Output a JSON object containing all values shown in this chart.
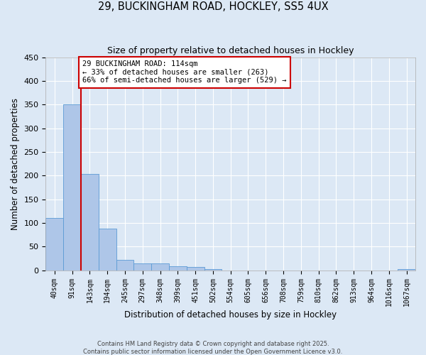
{
  "title": "29, BUCKINGHAM ROAD, HOCKLEY, SS5 4UX",
  "subtitle": "Size of property relative to detached houses in Hockley",
  "xlabel": "Distribution of detached houses by size in Hockley",
  "ylabel": "Number of detached properties",
  "bin_labels": [
    "40sqm",
    "91sqm",
    "143sqm",
    "194sqm",
    "245sqm",
    "297sqm",
    "348sqm",
    "399sqm",
    "451sqm",
    "502sqm",
    "554sqm",
    "605sqm",
    "656sqm",
    "708sqm",
    "759sqm",
    "810sqm",
    "862sqm",
    "913sqm",
    "964sqm",
    "1016sqm",
    "1067sqm"
  ],
  "bar_values": [
    110,
    350,
    204,
    88,
    22,
    15,
    15,
    8,
    7,
    2,
    0,
    0,
    0,
    0,
    0,
    0,
    0,
    0,
    0,
    0,
    2
  ],
  "bar_color": "#aec6e8",
  "bar_edge_color": "#5b9bd5",
  "ylim": [
    0,
    450
  ],
  "yticks": [
    0,
    50,
    100,
    150,
    200,
    250,
    300,
    350,
    400,
    450
  ],
  "property_line_color": "#cc0000",
  "annotation_title": "29 BUCKINGHAM ROAD: 114sqm",
  "annotation_line1": "← 33% of detached houses are smaller (263)",
  "annotation_line2": "66% of semi-detached houses are larger (529) →",
  "annotation_box_color": "#ffffff",
  "annotation_box_edge_color": "#cc0000",
  "background_color": "#dce8f5",
  "grid_color": "#ffffff",
  "footer_line1": "Contains HM Land Registry data © Crown copyright and database right 2025.",
  "footer_line2": "Contains public sector information licensed under the Open Government Licence v3.0."
}
